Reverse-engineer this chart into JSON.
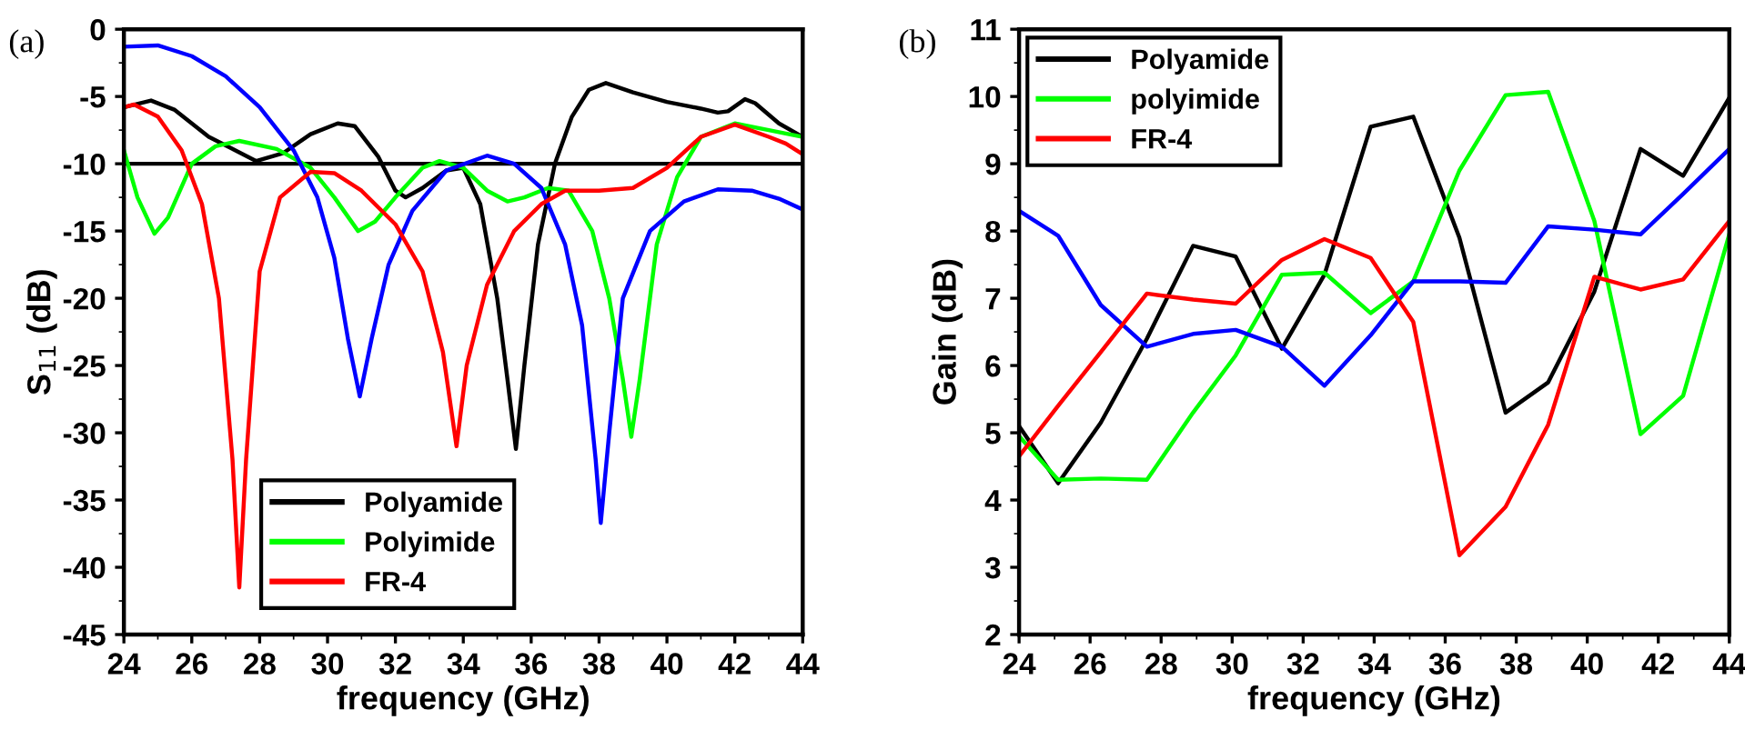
{
  "chart_data": [
    {
      "type": "line",
      "xlabel": "frequency (GHz)",
      "ylabel": "S$_{11}$ (dB)",
      "annotations": [
        "(a)"
      ],
      "xlim": [
        24,
        44
      ],
      "ylim": [
        -45,
        0
      ],
      "xticks": [
        24,
        26,
        28,
        30,
        32,
        34,
        36,
        38,
        40,
        42,
        44
      ],
      "yticks": [
        -45,
        -40,
        -35,
        -30,
        -25,
        -20,
        -15,
        -10,
        -5,
        0
      ],
      "grid": false,
      "legend": "bottom",
      "line_style": "solid",
      "marker": "none",
      "ref_lines": [
        {
          "axis": "y",
          "value": -10,
          "color": "#000000",
          "line_style": "solid"
        }
      ],
      "series": [
        {
          "name": "Polyamide",
          "color": "#000000",
          "x": [
            24,
            24.8,
            25.5,
            26.5,
            27.9,
            28.7,
            29.5,
            30.3,
            30.8,
            31.5,
            32,
            32.3,
            32.8,
            33.5,
            34,
            34.5,
            35,
            35.3,
            35.55,
            35.8,
            36.2,
            36.7,
            37.2,
            37.7,
            38.2,
            39,
            40,
            41,
            41.5,
            41.8,
            42.3,
            42.6,
            43.3,
            44
          ],
          "values": [
            -5.8,
            -5.3,
            -6.0,
            -8.0,
            -9.8,
            -9.2,
            -7.8,
            -7.0,
            -7.2,
            -9.5,
            -12.0,
            -12.5,
            -11.8,
            -10.5,
            -10.3,
            -13,
            -20,
            -26,
            -31.2,
            -25,
            -16,
            -10,
            -6.5,
            -4.5,
            -4.0,
            -4.7,
            -5.4,
            -5.9,
            -6.2,
            -6.1,
            -5.2,
            -5.5,
            -7.0,
            -8.0
          ]
        },
        {
          "name": "Polyimide",
          "color": "#00ff00",
          "x": [
            24,
            24.4,
            24.9,
            25.3,
            26,
            26.7,
            27.4,
            28.5,
            29.5,
            30.2,
            30.9,
            31.4,
            32,
            32.8,
            33.3,
            34,
            34.7,
            35.3,
            35.8,
            36.5,
            37.1,
            37.8,
            38.3,
            38.7,
            38.95,
            39.2,
            39.7,
            40.3,
            41,
            42,
            43,
            44
          ],
          "values": [
            -9,
            -12.5,
            -15.2,
            -14,
            -10,
            -8.7,
            -8.3,
            -8.9,
            -10.3,
            -12.5,
            -15.0,
            -14.3,
            -12.5,
            -10.3,
            -9.8,
            -10.3,
            -12.0,
            -12.8,
            -12.5,
            -11.8,
            -12.0,
            -15,
            -20,
            -26,
            -30.3,
            -26,
            -16,
            -11,
            -8,
            -7.0,
            -7.5,
            -8.0
          ]
        },
        {
          "color": "#0000ff",
          "x": [
            24,
            25,
            26,
            27,
            28,
            29,
            29.7,
            30.2,
            30.6,
            30.95,
            31.3,
            31.8,
            32.5,
            33.5,
            34.7,
            35.5,
            36.3,
            37,
            37.5,
            37.9,
            38.05,
            38.3,
            38.7,
            39.5,
            40.5,
            41.5,
            42.5,
            43.3,
            44
          ],
          "values": [
            -1.3,
            -1.2,
            -2.0,
            -3.5,
            -5.8,
            -9.0,
            -12.5,
            -17,
            -23,
            -27.3,
            -23,
            -17.5,
            -13.5,
            -10.5,
            -9.4,
            -10.0,
            -11.8,
            -16,
            -22,
            -32,
            -36.7,
            -30,
            -20,
            -15,
            -12.8,
            -11.9,
            -12.0,
            -12.6,
            -13.4
          ]
        },
        {
          "name": "FR-4",
          "color": "#ff0000",
          "x": [
            24,
            24.3,
            25,
            25.7,
            26.3,
            26.8,
            27.2,
            27.4,
            27.6,
            28,
            28.6,
            29.5,
            30.2,
            31,
            32,
            32.8,
            33.4,
            33.8,
            34.1,
            34.7,
            35.5,
            36.3,
            37,
            38,
            39,
            40,
            41,
            42,
            43,
            43.5,
            44
          ],
          "values": [
            -5.8,
            -5.6,
            -6.5,
            -9.0,
            -13,
            -20,
            -32,
            -41.5,
            -32,
            -18,
            -12.5,
            -10.6,
            -10.7,
            -12,
            -14.5,
            -18,
            -24,
            -31,
            -25,
            -19,
            -15,
            -13,
            -12,
            -12,
            -11.8,
            -10.3,
            -8,
            -7.1,
            -8.0,
            -8.5,
            -9.3
          ]
        }
      ]
    },
    {
      "type": "line",
      "xlabel": "frequency (GHz)",
      "ylabel": "Gain (dB)",
      "annotations": [
        "(b)"
      ],
      "xlim": [
        24,
        44
      ],
      "ylim": [
        2,
        11
      ],
      "xticks": [
        24,
        26,
        28,
        30,
        32,
        34,
        36,
        38,
        40,
        42,
        44
      ],
      "yticks": [
        2,
        3,
        4,
        5,
        6,
        7,
        8,
        9,
        10,
        11
      ],
      "grid": false,
      "legend": "top left",
      "line_style": "solid",
      "marker": "none",
      "x": [
        24,
        25.1,
        26.3,
        27.6,
        28.9,
        30.1,
        31.4,
        32.6,
        33.9,
        35.1,
        36.4,
        37.7,
        38.9,
        40.2,
        41.5,
        42.7,
        44
      ],
      "series": [
        {
          "name": "Polyamide",
          "color": "#000000",
          "values": [
            5.1,
            4.25,
            5.15,
            6.4,
            7.78,
            7.62,
            6.25,
            7.35,
            9.55,
            9.7,
            7.9,
            5.3,
            5.75,
            7.1,
            9.22,
            8.82,
            9.98
          ]
        },
        {
          "name": "polyimide",
          "color": "#00ff00",
          "values": [
            4.95,
            4.3,
            4.32,
            4.3,
            5.3,
            6.15,
            7.35,
            7.38,
            6.78,
            7.25,
            8.9,
            10.02,
            10.07,
            8.15,
            4.98,
            5.55,
            7.95
          ]
        },
        {
          "color": "#0000ff",
          "values": [
            8.3,
            7.93,
            6.9,
            6.28,
            6.47,
            6.53,
            6.28,
            5.7,
            6.45,
            7.25,
            7.25,
            7.23,
            8.07,
            8.02,
            7.95,
            8.55,
            9.22
          ]
        },
        {
          "name": "FR-4",
          "color": "#ff0000",
          "values": [
            4.65,
            5.4,
            6.2,
            7.07,
            6.98,
            6.92,
            7.57,
            7.88,
            7.6,
            6.65,
            3.18,
            3.9,
            5.12,
            7.32,
            7.13,
            7.28,
            8.15
          ]
        }
      ]
    }
  ]
}
